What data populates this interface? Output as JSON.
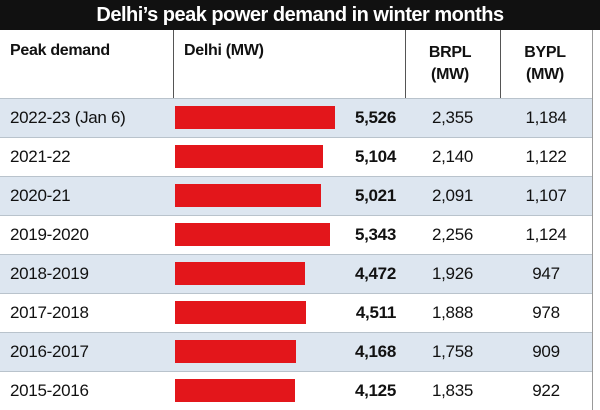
{
  "chart_data": {
    "type": "bar",
    "title": "Delhi’s peak power demand in winter months",
    "category_label": "Peak demand",
    "categories": [
      "2022-23 (Jan 6)",
      "2021-22",
      "2020-21",
      "2019-2020",
      "2018-2019",
      "2017-2018",
      "2016-2017",
      "2015-2016"
    ],
    "series": [
      {
        "name": "Delhi (MW)",
        "color": "#e3161b",
        "values": [
          5526,
          5104,
          5021,
          5343,
          4472,
          4511,
          4168,
          4125
        ],
        "value_labels": [
          "5,526",
          "5,104",
          "5,021",
          "5,343",
          "4,472",
          "4,511",
          "4,168",
          "4,125"
        ]
      },
      {
        "name": "BRPL (MW)",
        "values": [
          2355,
          2140,
          2091,
          2256,
          1926,
          1888,
          1758,
          1835
        ],
        "value_labels": [
          "2,355",
          "2,140",
          "2,091",
          "2,256",
          "1,926",
          "1,888",
          "1,758",
          "1,835"
        ]
      },
      {
        "name": "BYPL (MW)",
        "values": [
          1184,
          1122,
          1107,
          1124,
          947,
          978,
          909,
          922
        ],
        "value_labels": [
          "1,184",
          "1,122",
          "1,107",
          "1,124",
          "947",
          "978",
          "909",
          "922"
        ]
      }
    ]
  }
}
